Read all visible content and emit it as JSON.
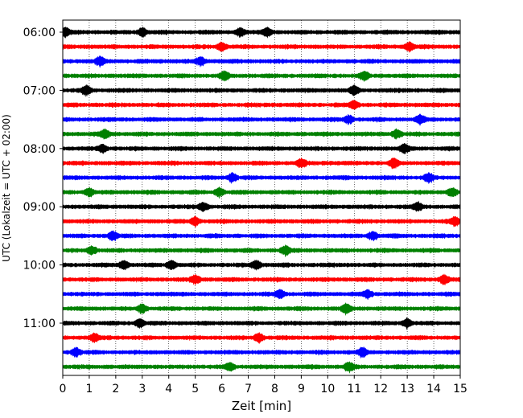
{
  "chart_data": {
    "type": "line",
    "title": "",
    "xlabel": "Zeit  [min]",
    "ylabel": "UTC (Lokalzeit = UTC + 02:00)",
    "xlim": [
      0,
      15
    ],
    "x_ticks": [
      "0",
      "1",
      "2",
      "3",
      "4",
      "5",
      "6",
      "7",
      "8",
      "9",
      "10",
      "11",
      "12",
      "13",
      "14",
      "15"
    ],
    "y_ticks": [
      "06:00",
      "07:00",
      "08:00",
      "09:00",
      "10:00",
      "11:00"
    ],
    "grid": "vertical dotted at each minute",
    "trace_interval_min": 15,
    "trace_colors": [
      "#000000",
      "#ff0000",
      "#0000ff",
      "#008000"
    ],
    "series": [
      {
        "start": "06:00",
        "color": "#000000",
        "bursts": [
          0.1,
          3.0,
          6.7,
          7.7
        ]
      },
      {
        "start": "06:15",
        "color": "#ff0000",
        "bursts": [
          6.0,
          13.1
        ]
      },
      {
        "start": "06:30",
        "color": "#0000ff",
        "bursts": [
          1.4,
          5.2
        ]
      },
      {
        "start": "06:45",
        "color": "#008000",
        "bursts": [
          6.1,
          11.4
        ]
      },
      {
        "start": "07:00",
        "color": "#000000",
        "bursts": [
          0.9,
          11.0
        ]
      },
      {
        "start": "07:15",
        "color": "#ff0000",
        "bursts": [
          11.0
        ]
      },
      {
        "start": "07:30",
        "color": "#0000ff",
        "bursts": [
          10.8,
          13.5
        ]
      },
      {
        "start": "07:45",
        "color": "#008000",
        "bursts": [
          1.6,
          12.6
        ]
      },
      {
        "start": "08:00",
        "color": "#000000",
        "bursts": [
          1.5,
          12.9
        ]
      },
      {
        "start": "08:15",
        "color": "#ff0000",
        "bursts": [
          9.0,
          12.5
        ]
      },
      {
        "start": "08:30",
        "color": "#0000ff",
        "bursts": [
          6.4,
          13.8
        ]
      },
      {
        "start": "08:45",
        "color": "#008000",
        "bursts": [
          1.0,
          5.9,
          14.7
        ]
      },
      {
        "start": "09:00",
        "color": "#000000",
        "bursts": [
          5.3,
          13.4
        ]
      },
      {
        "start": "09:15",
        "color": "#ff0000",
        "bursts": [
          5.0,
          14.8
        ]
      },
      {
        "start": "09:30",
        "color": "#0000ff",
        "bursts": [
          1.9,
          11.7
        ]
      },
      {
        "start": "09:45",
        "color": "#008000",
        "bursts": [
          1.1,
          8.4
        ]
      },
      {
        "start": "10:00",
        "color": "#000000",
        "bursts": [
          2.3,
          4.1,
          7.3
        ]
      },
      {
        "start": "10:15",
        "color": "#ff0000",
        "bursts": [
          5.0,
          14.4
        ]
      },
      {
        "start": "10:30",
        "color": "#0000ff",
        "bursts": [
          8.2,
          11.5
        ]
      },
      {
        "start": "10:45",
        "color": "#008000",
        "bursts": [
          3.0,
          10.7
        ]
      },
      {
        "start": "11:00",
        "color": "#000000",
        "bursts": [
          2.9,
          13.0
        ]
      },
      {
        "start": "11:15",
        "color": "#ff0000",
        "bursts": [
          1.2,
          7.4
        ]
      },
      {
        "start": "11:30",
        "color": "#0000ff",
        "bursts": [
          0.5,
          11.3
        ]
      },
      {
        "start": "11:45",
        "color": "#008000",
        "bursts": [
          6.3,
          10.8
        ]
      }
    ]
  }
}
